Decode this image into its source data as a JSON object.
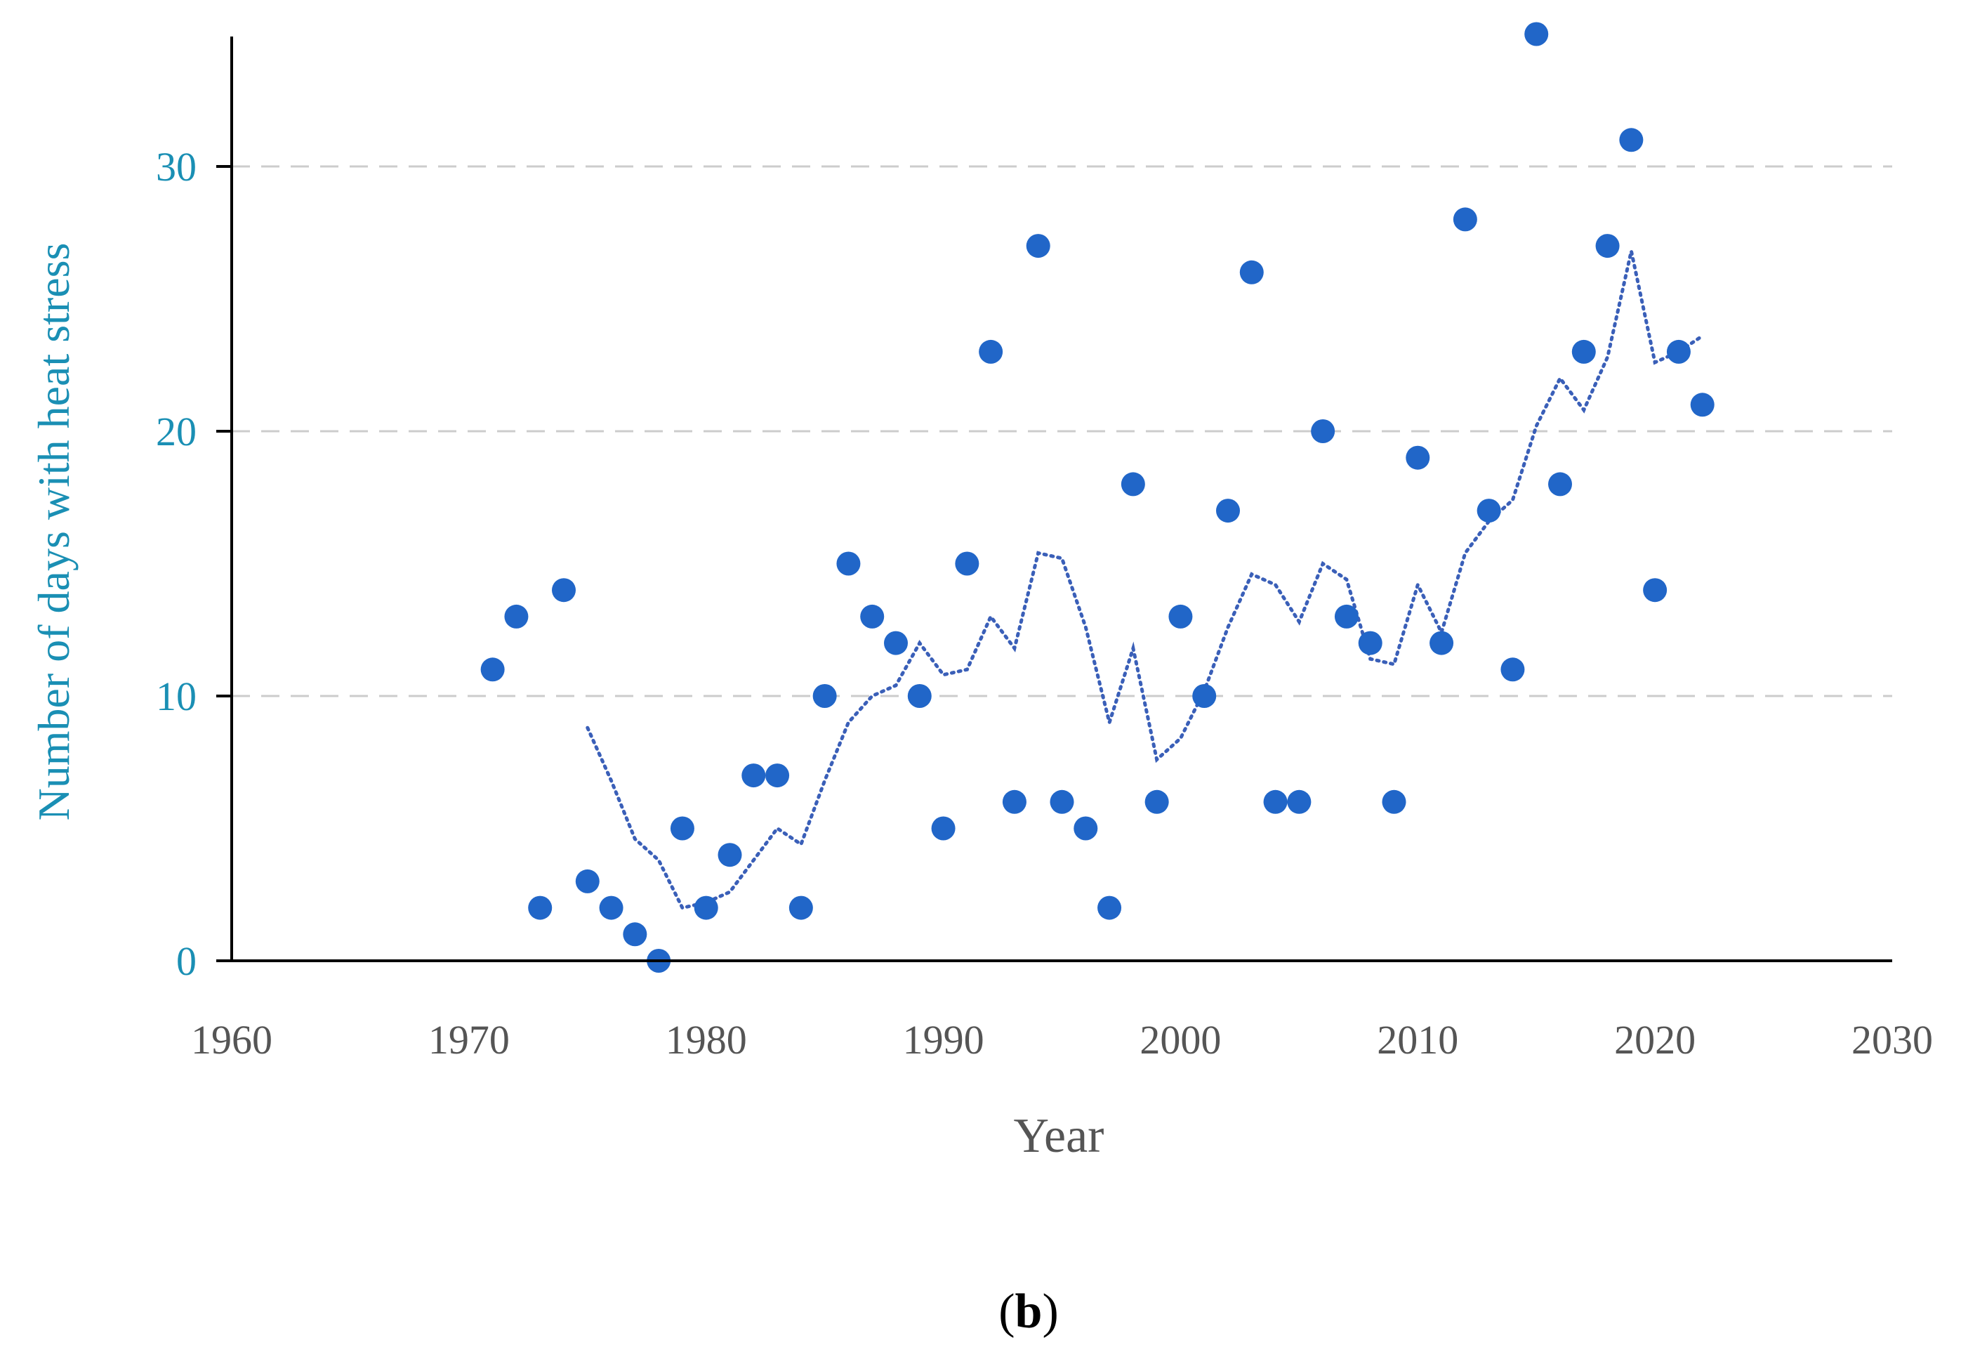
{
  "chart_data": {
    "type": "scatter",
    "title": "",
    "xlabel": "Year",
    "ylabel": "Number of days with heat stress",
    "xlim": [
      1960,
      2030
    ],
    "ylim": [
      0,
      35
    ],
    "x_ticks": [
      "1960",
      "1970",
      "1980",
      "1990",
      "2000",
      "2010",
      "2020",
      "2030"
    ],
    "y_ticks": [
      "0",
      "10",
      "20",
      "30"
    ],
    "y_grid_values": [
      10,
      20,
      30
    ],
    "grid": "horizontal dashed",
    "legend": "none",
    "panel_label": {
      "open": "(",
      "bold": "b",
      "close": ")"
    },
    "colors": {
      "points": "#2166c8",
      "trend": "#3a5fb8",
      "ylabel": "#1a8fb4",
      "ytick": "#1a8fb4",
      "xtick": "#555555",
      "xlabel": "#555555",
      "grid": "#cccccc",
      "axis": "#000000"
    },
    "series": [
      {
        "type": "scatter",
        "x": [
          1971,
          1972,
          1973,
          1974,
          1975,
          1976,
          1977,
          1978,
          1979,
          1980,
          1981,
          1982,
          1983,
          1984,
          1985,
          1986,
          1987,
          1988,
          1989,
          1990,
          1991,
          1992,
          1993,
          1994,
          1995,
          1996,
          1997,
          1998,
          1999,
          2000,
          2001,
          2002,
          2003,
          2004,
          2005,
          2006,
          2007,
          2008,
          2009,
          2010,
          2011,
          2012,
          2013,
          2014,
          2015,
          2016,
          2017,
          2018,
          2019,
          2020,
          2021,
          2022
        ],
        "y": [
          11,
          13,
          2,
          14,
          3,
          2,
          1,
          0,
          5,
          2,
          4,
          7,
          7,
          2,
          10,
          15,
          13,
          12,
          10,
          5,
          15,
          23,
          6,
          27,
          6,
          5,
          2,
          18,
          6,
          13,
          10,
          17,
          26,
          6,
          6,
          20,
          13,
          12,
          6,
          19,
          12,
          28,
          17,
          11,
          35,
          18,
          23,
          27,
          31,
          14,
          23,
          21
        ]
      },
      {
        "type": "line",
        "style": "dotted",
        "x": [
          1975,
          1976,
          1977,
          1978,
          1979,
          1980,
          1981,
          1982,
          1983,
          1984,
          1985,
          1986,
          1987,
          1988,
          1989,
          1990,
          1991,
          1992,
          1993,
          1994,
          1995,
          1996,
          1997,
          1998,
          1999,
          2000,
          2001,
          2002,
          2003,
          2004,
          2005,
          2006,
          2007,
          2008,
          2009,
          2010,
          2011,
          2012,
          2013,
          2014,
          2015,
          2016,
          2017,
          2018,
          2019,
          2020,
          2021,
          2022
        ],
        "y": [
          8.8,
          6.8,
          4.6,
          3.8,
          2.0,
          2.2,
          2.6,
          3.8,
          5.0,
          4.4,
          6.8,
          9.0,
          10.0,
          10.4,
          12.0,
          10.8,
          11.0,
          13.0,
          11.8,
          15.4,
          15.2,
          12.6,
          9.0,
          11.8,
          7.6,
          8.4,
          10.2,
          12.6,
          14.6,
          14.2,
          12.8,
          15.0,
          14.4,
          11.4,
          11.2,
          14.2,
          12.4,
          15.4,
          16.6,
          17.4,
          20.2,
          22.0,
          20.8,
          22.8,
          26.8,
          22.6,
          23.0,
          23.6
        ]
      }
    ]
  }
}
